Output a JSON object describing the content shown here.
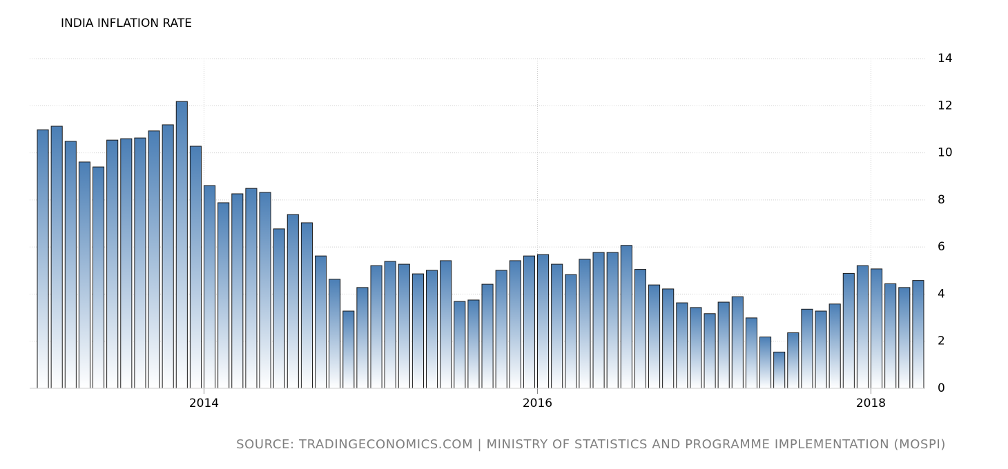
{
  "chart_data": {
    "type": "bar",
    "title": "INDIA INFLATION RATE",
    "source": "SOURCE: TRADINGECONOMICS.COM | MINISTRY OF STATISTICS AND PROGRAMME IMPLEMENTATION (MOSPI)",
    "categories": [
      null,
      null,
      null,
      null,
      null,
      null,
      null,
      null,
      null,
      null,
      null,
      null,
      "2014",
      null,
      null,
      null,
      null,
      null,
      null,
      null,
      null,
      null,
      null,
      null,
      null,
      null,
      null,
      null,
      null,
      null,
      null,
      null,
      null,
      null,
      null,
      null,
      "2016",
      null,
      null,
      null,
      null,
      null,
      null,
      null,
      null,
      null,
      null,
      null,
      null,
      null,
      null,
      null,
      null,
      null,
      null,
      null,
      null,
      null,
      null,
      null,
      "2018",
      null,
      null,
      null
    ],
    "values": [
      10.98,
      11.13,
      10.49,
      9.61,
      9.4,
      10.54,
      10.6,
      10.63,
      10.93,
      11.19,
      12.18,
      10.28,
      8.61,
      7.88,
      8.26,
      8.49,
      8.32,
      6.77,
      7.38,
      7.03,
      5.62,
      4.63,
      3.28,
      4.28,
      5.21,
      5.39,
      5.27,
      4.86,
      5.01,
      5.42,
      3.69,
      3.75,
      4.42,
      5.01,
      5.42,
      5.62,
      5.68,
      5.27,
      4.83,
      5.48,
      5.77,
      5.77,
      6.07,
      5.05,
      4.39,
      4.22,
      3.63,
      3.43,
      3.17,
      3.66,
      3.89,
      2.99,
      2.18,
      1.54,
      2.36,
      3.36,
      3.28,
      3.58,
      4.88,
      5.21,
      5.07,
      4.44,
      4.28,
      4.58
    ],
    "color": "#4a7eb5",
    "ylim": [
      0,
      14
    ],
    "yticks": [
      0,
      2,
      4,
      6,
      8,
      10,
      12,
      14
    ],
    "grid": true
  }
}
